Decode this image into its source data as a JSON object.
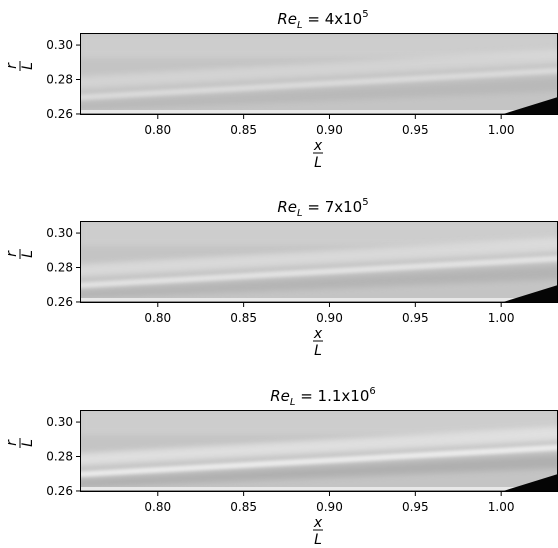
{
  "chart_data": [
    {
      "type": "image",
      "title": {
        "base": "Re",
        "sub": "L",
        "mid": " = 4x10",
        "sup": "5"
      },
      "xlabel": {
        "num": "x",
        "den": "L"
      },
      "ylabel": {
        "num": "r",
        "den": "L"
      },
      "xlim": [
        0.7547,
        1.0331
      ],
      "ylim": [
        0.2594,
        0.307
      ],
      "xticks": [
        {
          "value": 0.8,
          "label": "0.80"
        },
        {
          "value": 0.85,
          "label": "0.85"
        },
        {
          "value": 0.9,
          "label": "0.90"
        },
        {
          "value": 0.95,
          "label": "0.95"
        },
        {
          "value": 1.0,
          "label": "1.00"
        }
      ],
      "yticks": [
        {
          "value": 0.3,
          "label": "0.30"
        },
        {
          "value": 0.28,
          "label": "0.28"
        },
        {
          "value": 0.26,
          "label": "0.26"
        }
      ]
    },
    {
      "type": "image",
      "title": {
        "base": "Re",
        "sub": "L",
        "mid": " = 7x10",
        "sup": "5"
      },
      "xlabel": {
        "num": "x",
        "den": "L"
      },
      "ylabel": {
        "num": "r",
        "den": "L"
      },
      "xlim": [
        0.7547,
        1.0331
      ],
      "ylim": [
        0.2594,
        0.307
      ],
      "xticks": [
        {
          "value": 0.8,
          "label": "0.80"
        },
        {
          "value": 0.85,
          "label": "0.85"
        },
        {
          "value": 0.9,
          "label": "0.90"
        },
        {
          "value": 0.95,
          "label": "0.95"
        },
        {
          "value": 1.0,
          "label": "1.00"
        }
      ],
      "yticks": [
        {
          "value": 0.3,
          "label": "0.30"
        },
        {
          "value": 0.28,
          "label": "0.28"
        },
        {
          "value": 0.26,
          "label": "0.26"
        }
      ]
    },
    {
      "type": "image",
      "title": {
        "base": "Re",
        "sub": "L",
        "mid": " = 1.1x10",
        "sup": "6"
      },
      "xlabel": {
        "num": "x",
        "den": "L"
      },
      "ylabel": {
        "num": "r",
        "den": "L"
      },
      "xlim": [
        0.7547,
        1.0331
      ],
      "ylim": [
        0.2594,
        0.307
      ],
      "xticks": [
        {
          "value": 0.8,
          "label": "0.80"
        },
        {
          "value": 0.85,
          "label": "0.85"
        },
        {
          "value": 0.9,
          "label": "0.90"
        },
        {
          "value": 0.95,
          "label": "0.95"
        },
        {
          "value": 1.0,
          "label": "1.00"
        }
      ],
      "yticks": [
        {
          "value": 0.3,
          "label": "0.30"
        },
        {
          "value": 0.28,
          "label": "0.28"
        },
        {
          "value": 0.26,
          "label": "0.26"
        }
      ]
    }
  ]
}
